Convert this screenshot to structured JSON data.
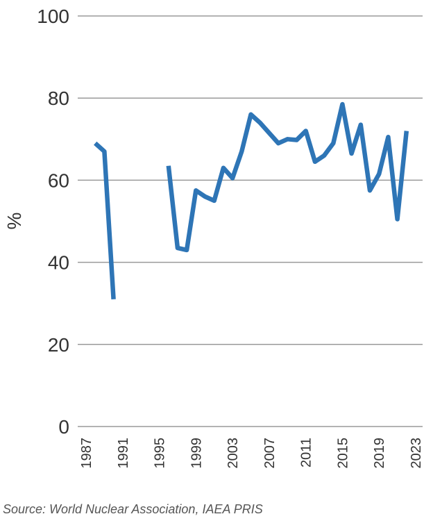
{
  "chart_data": {
    "type": "line",
    "ylabel": "%",
    "xlabel": "",
    "ylim": [
      0,
      100
    ],
    "yticks": [
      0,
      20,
      40,
      60,
      80,
      100
    ],
    "xlim": [
      1987,
      2023
    ],
    "xticks": [
      1987,
      1991,
      1995,
      1999,
      2003,
      2007,
      2011,
      2015,
      2019,
      2023
    ],
    "grid": true,
    "colors": {
      "line": "#2e75b6",
      "grid": "#9a9a9a"
    },
    "source": "Source: World Nuclear Association, IAEA PRIS",
    "series": [
      {
        "x": [
          1988,
          1989,
          1990,
          1991,
          1992,
          1993,
          1994,
          1995,
          1996,
          1997,
          1998,
          1999,
          2000,
          2001,
          2002,
          2003,
          2004,
          2005,
          2006,
          2007,
          2008,
          2009,
          2010,
          2011,
          2012,
          2013,
          2014,
          2015,
          2016,
          2017,
          2018,
          2019,
          2020,
          2021,
          2022
        ],
        "y": [
          69,
          67,
          31,
          null,
          null,
          null,
          null,
          null,
          63.5,
          43.5,
          43,
          57.5,
          56,
          55,
          63,
          60.5,
          67,
          76,
          74,
          71.5,
          69,
          70,
          69.8,
          72,
          64.5,
          66,
          69,
          78.5,
          66.5,
          73.5,
          57.5,
          61.5,
          70.5,
          50.5,
          72
        ]
      }
    ]
  }
}
